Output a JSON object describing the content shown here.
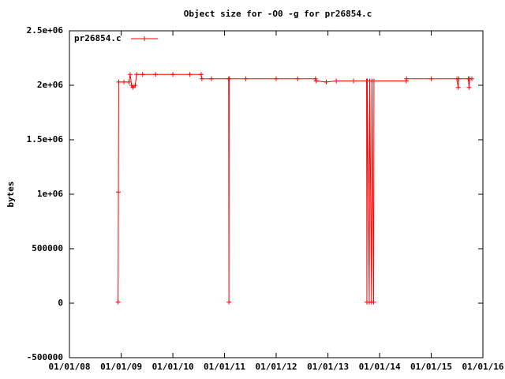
{
  "chart_data": {
    "type": "line",
    "title": "Object size for -O0 -g for pr26854.c",
    "y_label": "bytes",
    "x": [
      "2008-12-10",
      "2008-12-12",
      "2008-12-14",
      "2009-01-20",
      "2009-02-25",
      "2009-03-05",
      "2009-03-15",
      "2009-03-25",
      "2009-04-10",
      "2009-04-20",
      "2009-06-01",
      "2009-09-01",
      "2010-01-01",
      "2010-05-01",
      "2010-07-20",
      "2010-07-25",
      "2010-10-01",
      "2011-01-30",
      "2011-02-01",
      "2011-02-03",
      "2011-06-01",
      "2012-01-01",
      "2012-06-01",
      "2012-10-05",
      "2012-10-10",
      "2012-12-20",
      "2013-03-01",
      "2013-07-01",
      "2013-10-01",
      "2013-10-03",
      "2013-10-06",
      "2013-10-20",
      "2013-10-23",
      "2013-11-05",
      "2013-11-08",
      "2013-11-20",
      "2013-11-22",
      "2014-07-08",
      "2014-07-10",
      "2015-01-01",
      "2015-07-01",
      "2015-07-10",
      "2015-07-15",
      "2015-09-20",
      "2015-09-25",
      "2015-09-30",
      "2015-10-15"
    ],
    "series": [
      {
        "name": "pr26854.c",
        "color": "#ff0000",
        "values": [
          10000,
          1020000,
          2030000,
          2030000,
          2030000,
          2100000,
          2000000,
          1980000,
          2000000,
          2100000,
          2100000,
          2100000,
          2100000,
          2100000,
          2100000,
          2060000,
          2060000,
          2060000,
          10000,
          2060000,
          2060000,
          2060000,
          2060000,
          2060000,
          2040000,
          2030000,
          2040000,
          2040000,
          2040000,
          10000,
          2040000,
          10000,
          2040000,
          10000,
          2040000,
          10000,
          2040000,
          2040000,
          2060000,
          2060000,
          2060000,
          1980000,
          2060000,
          2060000,
          1980000,
          2060000,
          2060000
        ]
      }
    ],
    "xlim": [
      "2008-01-01",
      "2016-01-01"
    ],
    "xticks": [
      {
        "value": "2008-01-01",
        "label": "01/01/08"
      },
      {
        "value": "2009-01-01",
        "label": "01/01/09"
      },
      {
        "value": "2010-01-01",
        "label": "01/01/10"
      },
      {
        "value": "2011-01-01",
        "label": "01/01/11"
      },
      {
        "value": "2012-01-01",
        "label": "01/01/12"
      },
      {
        "value": "2013-01-01",
        "label": "01/01/13"
      },
      {
        "value": "2014-01-01",
        "label": "01/01/14"
      },
      {
        "value": "2015-01-01",
        "label": "01/01/15"
      },
      {
        "value": "2016-01-01",
        "label": "01/01/16"
      }
    ],
    "ylim": [
      -500000,
      2500000
    ],
    "yticks": [
      -500000,
      0,
      500000,
      {
        "value": 1000000,
        "label": "1e+06"
      },
      {
        "value": 1500000,
        "label": "1.5e+06"
      },
      {
        "value": 2000000,
        "label": "2e+06"
      },
      {
        "value": 2500000,
        "label": "2.5e+06"
      }
    ],
    "legend": "top-left"
  }
}
